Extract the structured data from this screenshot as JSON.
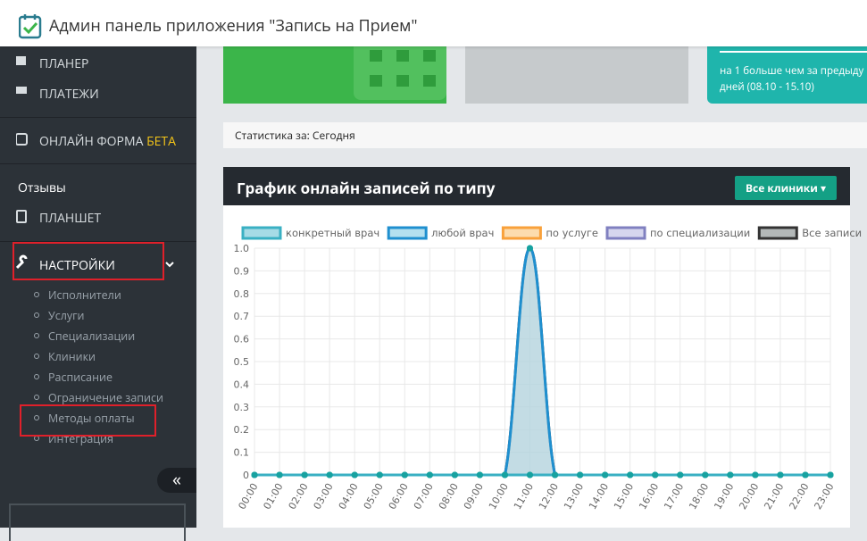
{
  "header": {
    "title": "Админ панель приложения \"Запись на Прием\""
  },
  "sidebar": {
    "items": [
      "ПЛАНЕР",
      "ПЛАТЕЖИ",
      "ОНЛАЙН ФОРМА",
      "Отзывы",
      "ПЛАНШЕТ",
      "НАСТРОЙКИ"
    ],
    "beta": "БЕТА",
    "submenu": [
      "Исполнители",
      "Услуги",
      "Специализации",
      "Клиники",
      "Расписание",
      "Ограничение записи",
      "Методы оплаты",
      "Интеграция"
    ]
  },
  "cards": {
    "line1": "на 1 больше чем за предыду",
    "line2": "дней (08.10 - 15.10)"
  },
  "stats": {
    "label": "Статистика за: Сегодня"
  },
  "panel": {
    "title": "График онлайн записей по типу",
    "button": "Все клиники"
  },
  "chart_data": {
    "type": "line",
    "categories": [
      "00:00",
      "01:00",
      "02:00",
      "03:00",
      "04:00",
      "05:00",
      "06:00",
      "07:00",
      "08:00",
      "09:00",
      "10:00",
      "11:00",
      "12:00",
      "13:00",
      "14:00",
      "15:00",
      "16:00",
      "17:00",
      "18:00",
      "19:00",
      "20:00",
      "21:00",
      "22:00",
      "23:00"
    ],
    "series": [
      {
        "name": "конкретный врач",
        "color": "#3ab0c3",
        "fill": "#a6dbe6",
        "values": [
          0,
          0,
          0,
          0,
          0,
          0,
          0,
          0,
          0,
          0,
          0,
          0,
          0,
          0,
          0,
          0,
          0,
          0,
          0,
          0,
          0,
          0,
          0,
          0
        ]
      },
      {
        "name": "любой врач",
        "color": "#1f8fcf",
        "fill": "#b4e0ef",
        "values": [
          0,
          0,
          0,
          0,
          0,
          0,
          0,
          0,
          0,
          0,
          0,
          1,
          0,
          0,
          0,
          0,
          0,
          0,
          0,
          0,
          0,
          0,
          0,
          0
        ]
      },
      {
        "name": "по услуге",
        "color": "#f9a13b",
        "fill": "#fcdcae",
        "values": [
          0,
          0,
          0,
          0,
          0,
          0,
          0,
          0,
          0,
          0,
          0,
          0,
          0,
          0,
          0,
          0,
          0,
          0,
          0,
          0,
          0,
          0,
          0,
          0
        ]
      },
      {
        "name": "по специализации",
        "color": "#8080c0",
        "fill": "#d6d6ee",
        "values": [
          0,
          0,
          0,
          0,
          0,
          0,
          0,
          0,
          0,
          0,
          0,
          0,
          0,
          0,
          0,
          0,
          0,
          0,
          0,
          0,
          0,
          0,
          0,
          0
        ]
      },
      {
        "name": "Все записи",
        "color": "#333333",
        "fill": "#b3b8b8",
        "values": [
          0,
          0,
          0,
          0,
          0,
          0,
          0,
          0,
          0,
          0,
          0,
          1,
          0,
          0,
          0,
          0,
          0,
          0,
          0,
          0,
          0,
          0,
          0,
          0
        ]
      }
    ],
    "ylim": [
      0,
      1
    ],
    "yticks": [
      0,
      0.1,
      0.2,
      0.3,
      0.4,
      0.5,
      0.6,
      0.7,
      0.8,
      0.9,
      {
        "value": 1,
        "label": "1.0"
      }
    ],
    "grid": true,
    "point_color": "#17a2a0"
  }
}
